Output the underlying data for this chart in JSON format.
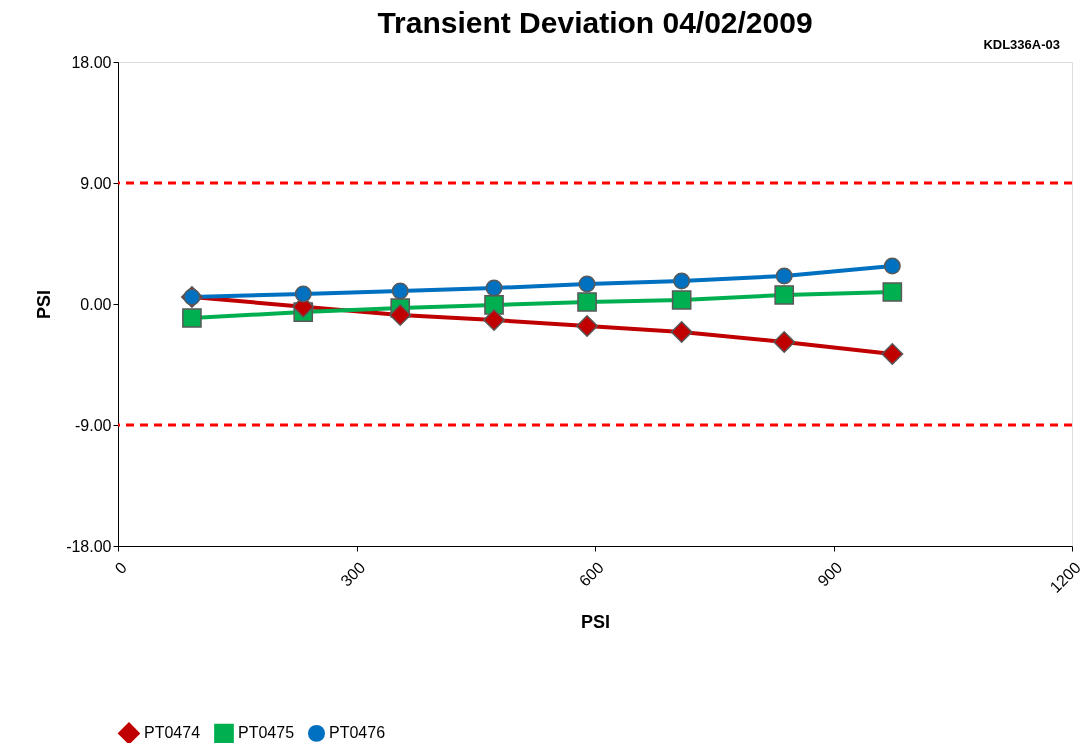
{
  "chart_data": {
    "type": "line",
    "title": "Transient Deviation 04/02/2009",
    "xlabel": "PSI",
    "ylabel": "PSI",
    "annotations": [
      "KDL336A-03"
    ],
    "xlim": [
      0,
      1200
    ],
    "xticks": [
      0,
      300,
      600,
      900,
      1200
    ],
    "ylim": [
      -18,
      18
    ],
    "yticks": [
      {
        "value": -18,
        "label": "-18.00"
      },
      {
        "value": -9,
        "label": "-9.00"
      },
      {
        "value": 0,
        "label": "0.00"
      },
      {
        "value": 9,
        "label": "9.00"
      },
      {
        "value": 18,
        "label": "18.00"
      }
    ],
    "grid": false,
    "legend": "bottom",
    "line_style": "solid",
    "x": [
      93,
      233,
      355,
      473,
      590,
      709,
      838,
      974
    ],
    "series": [
      {
        "name": "PT0474",
        "color": "#c00000",
        "marker": "diamond",
        "values": [
          0.52,
          -0.2,
          -0.82,
          -1.19,
          -1.64,
          -2.08,
          -2.83,
          -3.72
        ]
      },
      {
        "name": "PT0475",
        "color": "#00b050",
        "marker": "square",
        "values": [
          -1.04,
          -0.6,
          -0.3,
          -0.07,
          0.15,
          0.3,
          0.67,
          0.89
        ]
      },
      {
        "name": "PT0476",
        "color": "#0070c0",
        "marker": "circle",
        "values": [
          0.52,
          0.74,
          0.97,
          1.19,
          1.49,
          1.71,
          2.08,
          2.83
        ]
      }
    ],
    "ref_lines": [
      {
        "axis": "y",
        "value": 9,
        "label": null,
        "color": "#ff0000",
        "line_style": "dashed"
      },
      {
        "axis": "y",
        "value": -9,
        "label": null,
        "color": "#ff0000",
        "line_style": "dashed"
      }
    ]
  }
}
